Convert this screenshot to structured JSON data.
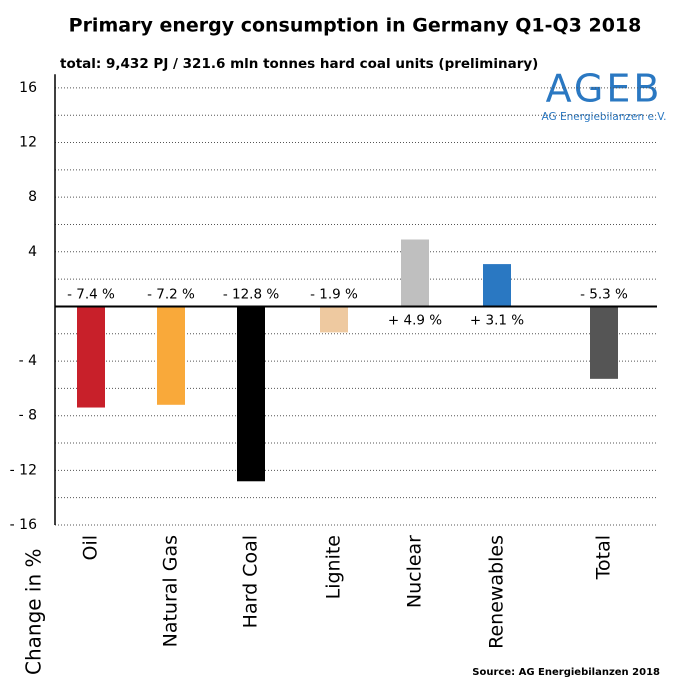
{
  "chart_data": {
    "type": "bar",
    "title": "Primary energy consumption in Germany Q1-Q3 2018",
    "subtitle": "total: 9,432 PJ / 321.6 mln tonnes hard coal units (preliminary)",
    "logo": "AGEB",
    "logo_caption": "AG Energiebilanzen e.V.",
    "source": "Source: AG Energiebilanzen 2018",
    "y_label": "Change in %",
    "categories": [
      "Oil",
      "Natural Gas",
      "Hard Coal",
      "Lignite",
      "Nuclear",
      "Renewables",
      "Total"
    ],
    "values": [
      -7.4,
      -7.2,
      -12.8,
      -1.9,
      4.9,
      3.1,
      -5.3
    ],
    "value_labels": [
      "- 7.4 %",
      "- 7.2 %",
      "- 12.8 %",
      "- 1.9 %",
      "+ 4.9 %",
      "+ 3.1 %",
      "- 5.3 %"
    ],
    "colors": [
      "#c8202a",
      "#f9a93a",
      "#000000",
      "#eec9a0",
      "#bfbfbf",
      "#2a78c2",
      "#555555"
    ],
    "ylim": [
      -16,
      17
    ],
    "yticks": [
      16,
      12,
      8,
      4,
      {
        "value": -4,
        "label": "- 4"
      },
      {
        "value": -8,
        "label": "- 8"
      },
      {
        "value": -12,
        "label": "- 12"
      },
      {
        "value": -16,
        "label": "- 16"
      }
    ],
    "minor_yticks": [
      14,
      10,
      6,
      2,
      -2,
      -6,
      -10,
      -14
    ],
    "grid": true
  }
}
